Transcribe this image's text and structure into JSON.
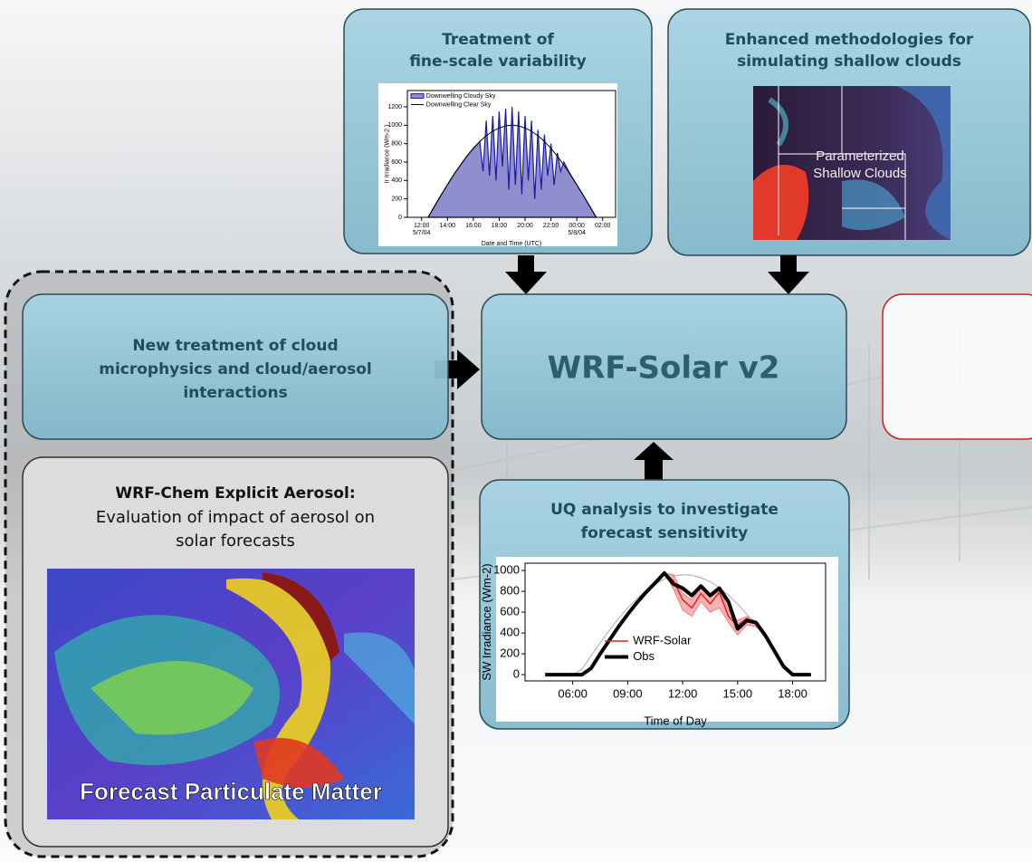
{
  "boxes": {
    "fine_scale": {
      "title": [
        "Treatment of",
        "fine-scale variability"
      ]
    },
    "shallow": {
      "title": [
        "Enhanced methodologies for",
        "simulating shallow clouds"
      ],
      "overlay": [
        "Parameterized",
        "Shallow Clouds"
      ]
    },
    "core": {
      "title": "WRF-Solar v2"
    },
    "microphysics": {
      "title": [
        "New treatment of cloud",
        "microphysics and cloud/aerosol",
        "interactions"
      ]
    },
    "chem": {
      "title": "WRF-Chem Explicit Aerosol:",
      "subtitle": [
        "Evaluation of impact of aerosol on",
        "solar forecasts"
      ],
      "overlay": "Forecast Particulate Matter"
    },
    "uq": {
      "title": [
        "UQ analysis to investigate",
        "forecast sensitivity"
      ]
    }
  },
  "chart_data": [
    {
      "type": "area",
      "ylabel": "Ir Irradiance (Wm-2 )",
      "xlabel": "Date and Time (UTC)",
      "xlim": [
        10.9,
        27
      ],
      "ylim": [
        0,
        1377
      ],
      "xticks": [
        {
          "value": 12,
          "label": "12:00"
        },
        {
          "value": 14,
          "label": "14:00"
        },
        {
          "value": 16,
          "label": "16:00"
        },
        {
          "value": 18,
          "label": "18:00"
        },
        {
          "value": 20,
          "label": "20:00"
        },
        {
          "value": 22,
          "label": "22:00"
        },
        {
          "value": 24,
          "label": "00:00"
        },
        {
          "value": 26,
          "label": "02:00"
        }
      ],
      "xtick_dates": [
        {
          "value": 12,
          "label": "5/7/04"
        },
        {
          "value": 24,
          "label": "5/8/04"
        }
      ],
      "yticks": [
        0,
        200,
        400,
        600,
        800,
        1000,
        1200
      ],
      "series": [
        {
          "name": "Downwelling Cloudy Sky",
          "color": "#1a1aa8",
          "fill": "#8f8fd0",
          "x": [
            12.5,
            13,
            13.5,
            14,
            14.5,
            15,
            15.5,
            16,
            16.5,
            16.75,
            17,
            17.25,
            17.5,
            17.75,
            18,
            18.25,
            18.5,
            18.75,
            19,
            19.25,
            19.5,
            19.75,
            20,
            20.25,
            20.5,
            20.75,
            21,
            21.25,
            21.5,
            21.75,
            22,
            22.25,
            22.5,
            22.75,
            23,
            23.5,
            24,
            24.5,
            25,
            25.5
          ],
          "values": [
            0,
            121,
            239,
            355,
            465,
            568,
            663,
            749,
            823,
            500,
            1050,
            450,
            1100,
            400,
            1150,
            550,
            1180,
            300,
            1200,
            350,
            1150,
            250,
            1100,
            400,
            1050,
            200,
            950,
            300,
            900,
            450,
            800,
            350,
            700,
            500,
            600,
            465,
            355,
            239,
            121,
            0
          ]
        },
        {
          "name": "Downwelling Clear Sky",
          "color": "#000000",
          "x": [
            12.5,
            13,
            13.5,
            14,
            14.5,
            15,
            15.5,
            16,
            16.5,
            17,
            17.5,
            18,
            18.5,
            19,
            19.5,
            20,
            20.5,
            21,
            21.5,
            22,
            22.5,
            23,
            23.5,
            24,
            24.5,
            25,
            25.5
          ],
          "values": [
            0,
            121,
            239,
            355,
            465,
            568,
            663,
            749,
            823,
            885,
            935,
            971,
            993,
            1000,
            993,
            971,
            935,
            885,
            823,
            749,
            663,
            568,
            465,
            355,
            239,
            121,
            0
          ]
        }
      ]
    },
    {
      "type": "line",
      "ylabel": "SW Irradiance (Wm-2)",
      "xlabel": "Time of Day",
      "xlim": [
        3.4,
        19.8
      ],
      "ylim": [
        -60,
        1070
      ],
      "xticks": [
        {
          "value": 6,
          "label": "06:00"
        },
        {
          "value": 9,
          "label": "09:00"
        },
        {
          "value": 12,
          "label": "12:00"
        },
        {
          "value": 15,
          "label": "15:00"
        },
        {
          "value": 18,
          "label": "18:00"
        }
      ],
      "yticks": [
        0,
        200,
        400,
        600,
        800,
        1000
      ],
      "x": [
        4.5,
        5,
        5.5,
        6,
        6.5,
        7,
        7.5,
        8,
        8.5,
        9,
        9.5,
        10,
        10.5,
        11,
        11.5,
        12,
        12.5,
        13,
        13.5,
        14,
        14.5,
        15,
        15.5,
        16,
        16.5,
        17,
        17.5,
        18,
        18.5,
        19
      ],
      "series": [
        {
          "color": "#aaaaaa",
          "width": 1,
          "values": [
            0,
            0,
            0,
            0,
            52,
            181,
            306,
            426,
            539,
            641,
            731,
            809,
            871,
            918,
            947,
            960,
            954,
            931,
            892,
            835,
            763,
            679,
            580,
            472,
            355,
            230,
            104,
            0,
            0,
            0
          ]
        },
        {
          "name": "WRF-Solar",
          "color": "#e02020",
          "width": 1.5,
          "band": "#f4a0a0",
          "values": [
            0,
            0,
            0,
            0,
            0,
            60,
            200,
            330,
            460,
            580,
            690,
            790,
            880,
            975,
            900,
            720,
            640,
            780,
            680,
            790,
            560,
            470,
            540,
            490,
            380,
            230,
            80,
            0,
            0,
            0
          ],
          "lower": [
            0,
            0,
            0,
            0,
            0,
            60,
            200,
            330,
            460,
            580,
            690,
            790,
            880,
            975,
            820,
            620,
            560,
            700,
            600,
            640,
            500,
            380,
            480,
            460,
            380,
            230,
            80,
            0,
            0,
            0
          ],
          "upper": [
            0,
            0,
            0,
            0,
            0,
            60,
            200,
            330,
            460,
            580,
            690,
            790,
            880,
            975,
            960,
            780,
            720,
            840,
            760,
            840,
            620,
            520,
            560,
            510,
            380,
            230,
            80,
            0,
            0,
            0
          ]
        },
        {
          "name": "Obs",
          "color": "#000000",
          "width": 4,
          "values": [
            0,
            0,
            0,
            0,
            0,
            60,
            200,
            330,
            460,
            580,
            690,
            790,
            880,
            975,
            870,
            830,
            760,
            850,
            760,
            830,
            700,
            440,
            520,
            500,
            380,
            230,
            80,
            0,
            0,
            0
          ]
        }
      ]
    }
  ]
}
